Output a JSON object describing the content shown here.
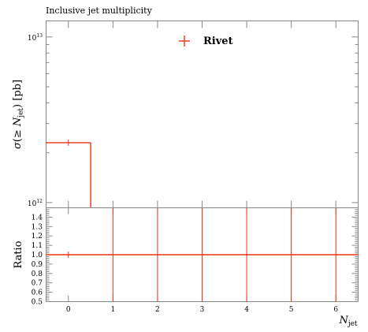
{
  "chart_data": [
    {
      "type": "line",
      "title": "Inclusive jet multiplicity",
      "xlabel": "N_jet",
      "ylabel": "σ(≥ N_jet) [pb]",
      "y_scale": "log",
      "ylim": [
        930000000000.0,
        12500000000000.0
      ],
      "xlim": [
        -0.5,
        6.5
      ],
      "y_tick_labels": [
        "10^12",
        "10^13"
      ],
      "series": [
        {
          "name": "Rivet",
          "color": "#ee3311",
          "marker": "cross",
          "bins": [
            {
              "x_low": -0.5,
              "x_high": 0.5,
              "y": 2300000000000.0
            },
            {
              "x_low": 0.5,
              "x_high": 1.5,
              "y": 0
            },
            {
              "x_low": 1.5,
              "x_high": 2.5,
              "y": 0
            },
            {
              "x_low": 2.5,
              "x_high": 3.5,
              "y": 0
            },
            {
              "x_low": 3.5,
              "x_high": 4.5,
              "y": 0
            },
            {
              "x_low": 4.5,
              "x_high": 5.5,
              "y": 0
            },
            {
              "x_low": 5.5,
              "x_high": 6.5,
              "y": 0
            }
          ]
        }
      ],
      "legend": {
        "position": "top-center",
        "entries": [
          "Rivet"
        ]
      }
    },
    {
      "type": "line",
      "ylabel": "Ratio",
      "xlabel": "N_jet",
      "xlim": [
        -0.5,
        6.5
      ],
      "ylim": [
        0.5,
        1.5
      ],
      "x_ticks": [
        0,
        1,
        2,
        3,
        4,
        5,
        6
      ],
      "x_tick_labels": [
        "0",
        "1",
        "2",
        "3",
        "4",
        "5",
        "6"
      ],
      "y_ticks": [
        0.5,
        0.6,
        0.7,
        0.8,
        0.9,
        1.0,
        1.1,
        1.2,
        1.3,
        1.4
      ],
      "y_tick_labels": [
        "0.5",
        "0.6",
        "0.7",
        "0.8",
        "0.9",
        "1.0",
        "1.1",
        "1.2",
        "1.3",
        "1.4"
      ],
      "series": [
        {
          "name": "Rivet",
          "color": "#ee3311",
          "ratio": 1.0,
          "error_band_x": [
            1,
            2,
            3,
            4,
            5,
            6
          ]
        }
      ]
    }
  ]
}
